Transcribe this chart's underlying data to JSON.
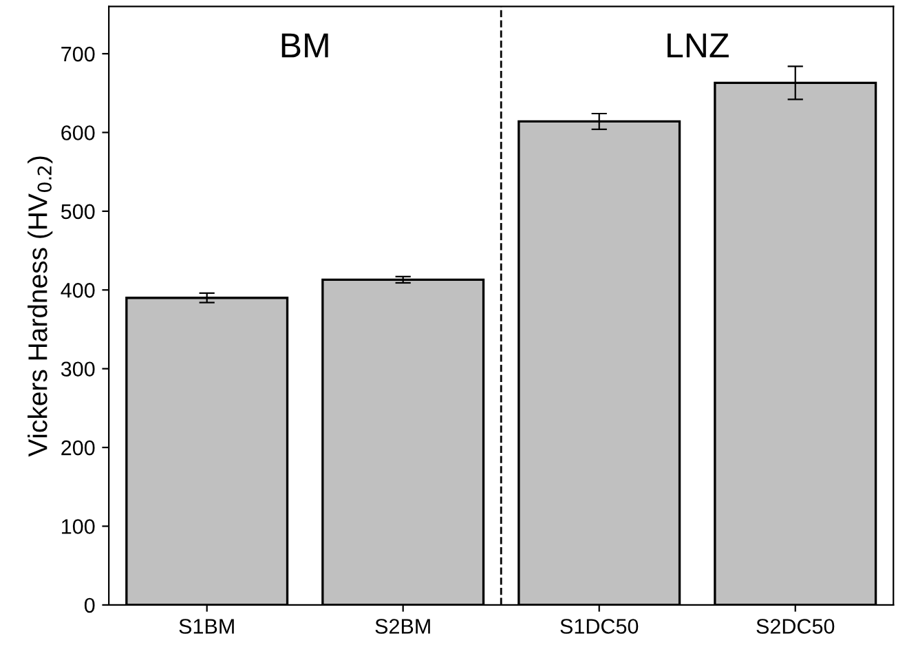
{
  "chart_data": {
    "type": "bar",
    "ylabel": "Vickers Hardness (HV$_{0.2}$)",
    "categories": [
      "S1BM",
      "S2BM",
      "S1DC50",
      "S2DC50"
    ],
    "values": [
      390,
      413,
      614,
      663
    ],
    "errors": [
      6,
      4,
      10,
      21
    ],
    "color": "#c0c0c0",
    "ylim": [
      0,
      760
    ],
    "yticks": [
      0,
      100,
      200,
      300,
      400,
      500,
      600,
      700
    ],
    "annotations": [
      "BM",
      "LNZ"
    ],
    "grid": false,
    "legend": false
  }
}
